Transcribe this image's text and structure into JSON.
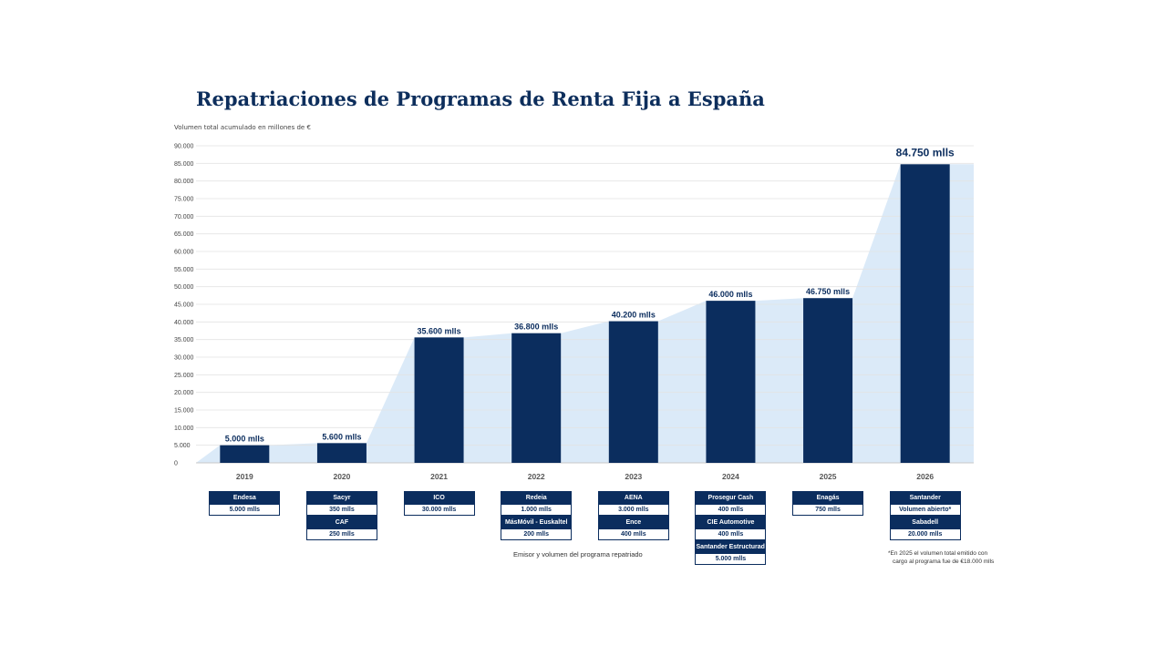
{
  "title": "Repatriaciones de Programas de Renta Fija a España",
  "subtitle": "Volumen total acumulado en millones de €",
  "caption": "Emisor y volumen del programa repatriado",
  "footnote": {
    "line1": "*En 2025 el volumen total emitido con",
    "line2": "cargo al programa fue de €18.000 mlls"
  },
  "colors": {
    "bar": "#0b2d5e",
    "area": "#dbeaf8",
    "title": "#0d2e5c"
  },
  "chart_data": {
    "type": "bar",
    "title": "Repatriaciones de Programas de Renta Fija a España",
    "ylabel": "Volumen total acumulado en millones de €",
    "xlabel": "",
    "ylim": [
      0,
      90000
    ],
    "yticks": [
      0,
      5000,
      10000,
      15000,
      20000,
      25000,
      30000,
      35000,
      40000,
      45000,
      50000,
      55000,
      60000,
      65000,
      70000,
      75000,
      80000,
      85000,
      90000
    ],
    "ytick_labels": [
      "0",
      "5.000",
      "10.000",
      "15.000",
      "20.000",
      "25.000",
      "30.000",
      "35.000",
      "40.000",
      "45.000",
      "50.000",
      "55.000",
      "60.000",
      "65.000",
      "70.000",
      "75.000",
      "80.000",
      "85.000",
      "90.000"
    ],
    "categories": [
      "2019",
      "2020",
      "2021",
      "2022",
      "2023",
      "2024",
      "2025",
      "2026"
    ],
    "values": [
      5000,
      5600,
      35600,
      36800,
      40200,
      46000,
      46750,
      84750
    ],
    "data_labels": [
      "5.000 mlls",
      "5.600 mlls",
      "35.600 mlls",
      "36.800 mlls",
      "40.200 mlls",
      "46.000 mlls",
      "46.750 mlls",
      "84.750 mlls"
    ],
    "grid": true,
    "background_area": true
  },
  "issuers": [
    [
      {
        "name": "Endesa",
        "volume": "5.000 mlls"
      }
    ],
    [
      {
        "name": "Sacyr",
        "volume": "350 mlls"
      },
      {
        "name": "CAF",
        "volume": "250 mlls"
      }
    ],
    [
      {
        "name": "ICO",
        "volume": "30.000 mlls"
      }
    ],
    [
      {
        "name": "Redeia",
        "volume": "1.000 mlls"
      },
      {
        "name": "MásMóvil - Euskaltel",
        "volume": "200 mlls"
      }
    ],
    [
      {
        "name": "AENA",
        "volume": "3.000 mlls"
      },
      {
        "name": "Ence",
        "volume": "400 mlls"
      }
    ],
    [
      {
        "name": "Prosegur Cash",
        "volume": "400 mlls"
      },
      {
        "name": "CIE Automotive",
        "volume": "400 mlls"
      },
      {
        "name": "Santander Estructurados",
        "volume": "5.000 mlls"
      }
    ],
    [
      {
        "name": "Enagás",
        "volume": "750 mlls"
      }
    ],
    [
      {
        "name": "Santander",
        "volume": "Volumen abierto*"
      },
      {
        "name": "Sabadell",
        "volume": "20.000 mlls"
      }
    ]
  ]
}
